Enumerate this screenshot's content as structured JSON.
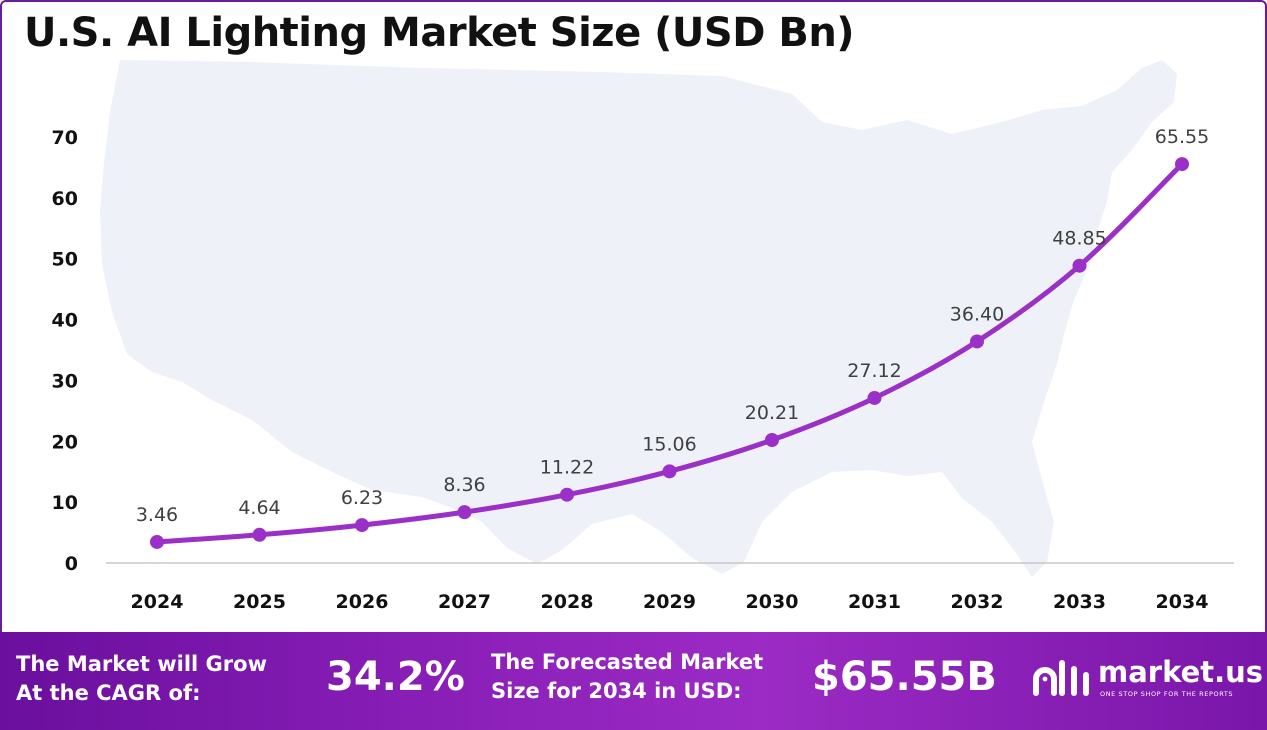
{
  "footer": {
    "cagr_label_line1": "The Market will Grow",
    "cagr_label_line2": "At the CAGR of:",
    "cagr_value": "34.2%",
    "forecast_label_line1": "The Forecasted Market",
    "forecast_label_line2": "Size for 2034 in USD:",
    "forecast_value": "$65.55B"
  },
  "brand": {
    "name": "market.us",
    "tagline": "ONE STOP SHOP FOR THE REPORTS"
  },
  "colors": {
    "line": "#9b30c8",
    "frame": "#6a1b9a",
    "footer": "#8a1fb8",
    "map": "#eef1f8"
  },
  "chart_data": {
    "type": "line",
    "title": "U.S. AI Lighting Market Size (USD Bn)",
    "categories": [
      "2024",
      "2025",
      "2026",
      "2027",
      "2028",
      "2029",
      "2030",
      "2031",
      "2032",
      "2033",
      "2034"
    ],
    "series": [
      {
        "values": [
          3.46,
          4.64,
          6.23,
          8.36,
          11.22,
          15.06,
          20.21,
          27.12,
          36.4,
          48.85,
          65.55
        ]
      }
    ],
    "data_labels": [
      "3.46",
      "4.64",
      "6.23",
      "8.36",
      "11.22",
      "15.06",
      "20.21",
      "27.12",
      "36.40",
      "48.85",
      "65.55"
    ],
    "y_ticks": [
      0,
      10,
      20,
      30,
      40,
      50,
      60,
      70
    ],
    "ylim": [
      0,
      70
    ],
    "xlabel": "",
    "ylabel": "",
    "grid": false,
    "legend": "none"
  }
}
